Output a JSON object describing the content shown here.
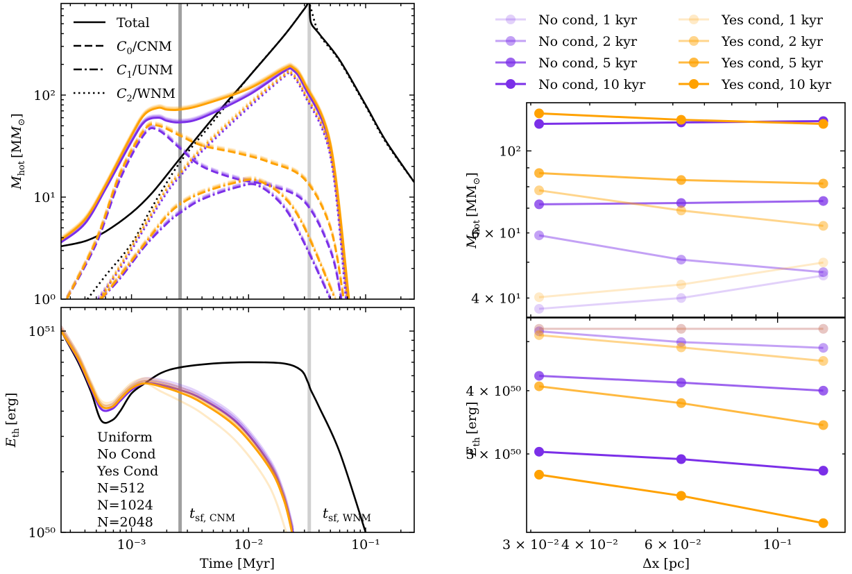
{
  "colors": {
    "no_cond": "#7b2fe8",
    "yes_cond": "#ffa100",
    "uniform": "#000000",
    "t_cnm_line": "#a0a0a0",
    "t_wnm_line": "#d0d0d0"
  },
  "chart_data": [
    {
      "id": "mhot-vs-time",
      "type": "line",
      "xscale": "log",
      "yscale": "log",
      "xlabel": "Time [Myr]",
      "ylabel": "M_hot [M_⊙]",
      "xlim": [
        0.00025,
        0.26
      ],
      "ylim": [
        1,
        790
      ],
      "xticks": [
        {
          "value": 0.001,
          "label": "10⁻³"
        },
        {
          "value": 0.01,
          "label": "10⁻²"
        },
        {
          "value": 0.1,
          "label": "10⁻¹"
        }
      ],
      "yticks": [
        {
          "value": 1,
          "label": "10⁰"
        },
        {
          "value": 10,
          "label": "10¹"
        },
        {
          "value": 100,
          "label": "10²"
        }
      ],
      "vlines": [
        {
          "name": "t_sf_CNM",
          "x": 0.0026
        },
        {
          "name": "t_sf_WNM",
          "x": 0.033
        }
      ],
      "legend": {
        "placement": "top-left",
        "entries": [
          {
            "label": "Total",
            "style": "solid"
          },
          {
            "label": "C₀/CNM",
            "style": "dashed"
          },
          {
            "label": "C₁/UNM",
            "style": "dashdot"
          },
          {
            "label": "C₂/WNM",
            "style": "dotted"
          }
        ]
      },
      "series": [
        {
          "name": "Uniform Total",
          "group": "uniform",
          "style": "solid",
          "x": [
            0.00025,
            0.0004,
            0.0006,
            0.001,
            0.0015,
            0.0026,
            0.005,
            0.01,
            0.02,
            0.03,
            0.033,
            0.034,
            0.04,
            0.06,
            0.1,
            0.15,
            0.26
          ],
          "y": [
            3.3,
            3.7,
            4.6,
            7,
            11,
            24,
            60,
            150,
            380,
            700,
            800,
            520,
            400,
            220,
            80,
            35,
            14
          ]
        },
        {
          "name": "Uniform C2/WNM",
          "group": "uniform",
          "style": "dotted",
          "x": [
            0.00042,
            0.0006,
            0.001,
            0.0015,
            0.0026,
            0.005,
            0.01,
            0.02,
            0.03,
            0.033,
            0.04,
            0.06,
            0.1,
            0.15,
            0.26
          ],
          "y": [
            1,
            1.7,
            3.5,
            8,
            22,
            55,
            150,
            380,
            700,
            780,
            400,
            215,
            78,
            34,
            14
          ]
        },
        {
          "name": "No Cond N=2048 Total",
          "group": "no_cond",
          "res": 2048,
          "style": "solid",
          "x": [
            0.00025,
            0.0004,
            0.0006,
            0.001,
            0.0013,
            0.0017,
            0.002,
            0.0026,
            0.004,
            0.01,
            0.02,
            0.024,
            0.03,
            0.05,
            0.07
          ],
          "y": [
            3.6,
            5.5,
            12,
            35,
            55,
            60,
            56,
            54,
            60,
            100,
            170,
            175,
            120,
            30,
            1
          ]
        },
        {
          "name": "Yes Cond N=2048 Total",
          "group": "yes_cond",
          "res": 2048,
          "style": "solid",
          "x": [
            0.00025,
            0.0004,
            0.0006,
            0.001,
            0.0013,
            0.0017,
            0.002,
            0.0026,
            0.004,
            0.01,
            0.02,
            0.024,
            0.03,
            0.05,
            0.072
          ],
          "y": [
            3.8,
            6,
            13,
            40,
            65,
            75,
            72,
            72,
            80,
            115,
            180,
            185,
            130,
            33,
            1
          ]
        },
        {
          "name": "No Cond N=2048 C0/CNM",
          "group": "no_cond",
          "res": 2048,
          "style": "dashed",
          "x": [
            0.00028,
            0.0005,
            0.0008,
            0.0013,
            0.0017,
            0.0026,
            0.004,
            0.008,
            0.015,
            0.03,
            0.05,
            0.062
          ],
          "y": [
            1,
            3.5,
            15,
            42,
            45,
            30,
            20,
            15,
            13,
            9,
            3,
            1
          ]
        },
        {
          "name": "Yes Cond N=2048 C0/CNM",
          "group": "yes_cond",
          "res": 2048,
          "style": "dashed",
          "x": [
            0.00028,
            0.0005,
            0.0008,
            0.0013,
            0.0017,
            0.0026,
            0.004,
            0.008,
            0.015,
            0.03,
            0.05,
            0.065
          ],
          "y": [
            1,
            3.8,
            17,
            46,
            50,
            40,
            32,
            27,
            22,
            15,
            5,
            1
          ]
        },
        {
          "name": "No Cond N=2048 C1/UNM",
          "group": "no_cond",
          "res": 2048,
          "style": "dashdot",
          "x": [
            0.00055,
            0.0008,
            0.0013,
            0.002,
            0.0026,
            0.004,
            0.008,
            0.012,
            0.02,
            0.03,
            0.05
          ],
          "y": [
            1,
            1.6,
            3.3,
            5.5,
            7,
            9.5,
            12.5,
            13,
            8,
            3.5,
            1
          ]
        },
        {
          "name": "Yes Cond N=2048 C1/UNM",
          "group": "yes_cond",
          "res": 2048,
          "style": "dashdot",
          "x": [
            0.00055,
            0.0008,
            0.0013,
            0.002,
            0.0026,
            0.004,
            0.008,
            0.012,
            0.02,
            0.03,
            0.055
          ],
          "y": [
            1,
            1.7,
            3.5,
            6.5,
            8.5,
            11,
            14,
            14.5,
            10,
            5,
            1
          ]
        },
        {
          "name": "No Cond N=2048 C2/WNM",
          "group": "no_cond",
          "res": 2048,
          "style": "dotted",
          "x": [
            0.00052,
            0.0008,
            0.0013,
            0.002,
            0.0026,
            0.004,
            0.01,
            0.02,
            0.023,
            0.03,
            0.05,
            0.068
          ],
          "y": [
            1,
            2,
            5,
            11,
            16,
            28,
            75,
            150,
            160,
            100,
            25,
            1
          ]
        },
        {
          "name": "Yes Cond N=2048 C2/WNM",
          "group": "yes_cond",
          "res": 2048,
          "style": "dotted",
          "x": [
            0.00054,
            0.0008,
            0.0013,
            0.002,
            0.0026,
            0.004,
            0.01,
            0.02,
            0.023,
            0.03,
            0.05,
            0.07
          ],
          "y": [
            1,
            2.1,
            5.3,
            12,
            17,
            30,
            80,
            155,
            165,
            105,
            27,
            1
          ]
        }
      ],
      "note": "Each group has lighter N=512 and N=1024 variants closely tracking the N=2048 curves."
    },
    {
      "id": "eth-vs-time",
      "type": "line",
      "xscale": "log",
      "yscale": "log",
      "xlabel": "Time [Myr]",
      "ylabel": "E_th [erg]",
      "xlim": [
        0.00025,
        0.26
      ],
      "ylim": [
        1e+50,
        1.31e+51
      ],
      "xticks": [
        {
          "value": 0.001,
          "label": "10⁻³"
        },
        {
          "value": 0.01,
          "label": "10⁻²"
        },
        {
          "value": 0.1,
          "label": "10⁻¹"
        }
      ],
      "yticks": [
        {
          "value": 1e+50,
          "label": "10⁵⁰"
        },
        {
          "value": 1e+51,
          "label": "10⁵¹"
        }
      ],
      "vlines": [
        {
          "name": "t_sf_CNM",
          "x": 0.0026,
          "label": "t_sf,CNM"
        },
        {
          "name": "t_sf_WNM",
          "x": 0.033,
          "label": "t_sf,WNM"
        }
      ],
      "text_legend": [
        {
          "label": "Uniform",
          "group": "uniform"
        },
        {
          "label": "No Cond",
          "group": "no_cond"
        },
        {
          "label": "Yes Cond",
          "group": "yes_cond"
        },
        {
          "label": "N=512",
          "group": "res512"
        },
        {
          "label": "N=1024",
          "group": "res1024"
        },
        {
          "label": "N=2048",
          "group": "res2048"
        }
      ],
      "series": [
        {
          "name": "Uniform",
          "group": "uniform",
          "x": [
            0.00025,
            0.00035,
            0.00045,
            0.00055,
            0.00068,
            0.0008,
            0.001,
            0.0013,
            0.0018,
            0.0026,
            0.005,
            0.01,
            0.02,
            0.028,
            0.032,
            0.034,
            0.04,
            0.06,
            0.1
          ],
          "y": [
            1e+51,
            7e+50,
            5e+50,
            3.6e+50,
            3.6e+50,
            4e+50,
            4.9e+50,
            5.5e+50,
            6.2e+50,
            6.6e+50,
            6.9e+50,
            7e+50,
            6.9e+50,
            6.4e+50,
            5.6e+50,
            5.1e+50,
            4.2e+50,
            2.5e+50,
            1e+50
          ]
        },
        {
          "name": "No Cond N=2048",
          "group": "no_cond",
          "res": 2048,
          "x": [
            0.00025,
            0.00035,
            0.00045,
            0.00055,
            0.00068,
            0.0008,
            0.001,
            0.0013,
            0.0018,
            0.0026,
            0.004,
            0.008,
            0.015,
            0.02,
            0.024
          ],
          "y": [
            1e+51,
            7.2e+50,
            5.2e+50,
            4.1e+50,
            4.1e+50,
            4.5e+50,
            5.1e+50,
            5.5e+50,
            5.4e+50,
            5.1e+50,
            4.6e+50,
            3.5e+50,
            2.2e+50,
            1.5e+50,
            1e+50
          ]
        },
        {
          "name": "Yes Cond N=2048",
          "group": "yes_cond",
          "res": 2048,
          "x": [
            0.00025,
            0.00035,
            0.00045,
            0.00055,
            0.00068,
            0.0008,
            0.001,
            0.0013,
            0.0018,
            0.0026,
            0.004,
            0.008,
            0.015,
            0.02,
            0.0235
          ],
          "y": [
            1e+51,
            7.3e+50,
            5.3e+50,
            4.25e+50,
            4.2e+50,
            4.6e+50,
            5.2e+50,
            5.5e+50,
            5.3e+50,
            4.95e+50,
            4.4e+50,
            3.3e+50,
            2.1e+50,
            1.45e+50,
            1e+50
          ]
        },
        {
          "name": "Yes Cond N=512",
          "group": "yes_cond",
          "res": 512,
          "x": [
            0.00025,
            0.00035,
            0.00045,
            0.00055,
            0.00068,
            0.0008,
            0.001,
            0.0013,
            0.0018,
            0.0026,
            0.004,
            0.008,
            0.015,
            0.021
          ],
          "y": [
            1e+51,
            7.3e+50,
            5.3e+50,
            4.25e+50,
            4.2e+50,
            4.6e+50,
            5.2e+50,
            5.5e+50,
            5e+50,
            4.5e+50,
            3.9e+50,
            2.8e+50,
            1.7e+50,
            1e+50
          ]
        }
      ]
    },
    {
      "id": "mhot-vs-dx",
      "type": "line",
      "xscale": "log",
      "yscale": "log",
      "xlabel": "",
      "ylabel": "M_hot [M_⊙]",
      "xlim": [
        0.0294,
        0.139
      ],
      "ylim": [
        35.5,
        135
      ],
      "yticks": [
        {
          "value": 40,
          "label": "4 × 10¹"
        },
        {
          "value": 60,
          "label": "6 × 10¹"
        },
        {
          "value": 100,
          "label": "10²"
        }
      ],
      "legend": {
        "placement": "above",
        "entries": [
          {
            "label": "No cond, 1 kyr",
            "group": "no_cond",
            "age": 1
          },
          {
            "label": "No cond, 2 kyr",
            "group": "no_cond",
            "age": 2
          },
          {
            "label": "No cond, 5 kyr",
            "group": "no_cond",
            "age": 5
          },
          {
            "label": "No cond, 10 kyr",
            "group": "no_cond",
            "age": 10
          },
          {
            "label": "Yes cond, 1 kyr",
            "group": "yes_cond",
            "age": 1
          },
          {
            "label": "Yes cond, 2 kyr",
            "group": "yes_cond",
            "age": 2
          },
          {
            "label": "Yes cond, 5 kyr",
            "group": "yes_cond",
            "age": 5
          },
          {
            "label": "Yes cond, 10 kyr",
            "group": "yes_cond",
            "age": 10
          }
        ]
      },
      "x": [
        0.03125,
        0.0625,
        0.125
      ],
      "series": [
        {
          "name": "No cond, 1 kyr",
          "group": "no_cond",
          "age": 1,
          "values": [
            37.4,
            40.0,
            46.0
          ]
        },
        {
          "name": "No cond, 2 kyr",
          "group": "no_cond",
          "age": 2,
          "values": [
            59.1,
            50.8,
            47.0
          ]
        },
        {
          "name": "No cond, 5 kyr",
          "group": "no_cond",
          "age": 5,
          "values": [
            71.7,
            72.3,
            73.2
          ]
        },
        {
          "name": "No cond, 10 kyr",
          "group": "no_cond",
          "age": 10,
          "values": [
            118.3,
            119.4,
            120.4
          ]
        },
        {
          "name": "Yes cond, 1 kyr",
          "group": "yes_cond",
          "age": 1,
          "values": [
            40.2,
            43.5,
            49.9
          ]
        },
        {
          "name": "Yes cond, 2 kyr",
          "group": "yes_cond",
          "age": 2,
          "values": [
            78.2,
            69.0,
            62.7
          ]
        },
        {
          "name": "Yes cond, 5 kyr",
          "group": "yes_cond",
          "age": 5,
          "values": [
            87.1,
            83.4,
            81.6
          ]
        },
        {
          "name": "Yes cond, 10 kyr",
          "group": "yes_cond",
          "age": 10,
          "values": [
            126.3,
            121.4,
            118.3
          ]
        }
      ]
    },
    {
      "id": "eth-vs-dx",
      "type": "line",
      "xscale": "log",
      "yscale": "log",
      "xlabel": "Δx [pc]",
      "ylabel": "E_th [erg]",
      "xlim": [
        0.0294,
        0.139
      ],
      "ylim": [
        2.1e+50,
        5.57e+50
      ],
      "xticks": [
        {
          "value": 0.03,
          "label": "3 × 10⁻²"
        },
        {
          "value": 0.04,
          "label": "4 × 10⁻²"
        },
        {
          "value": 0.06,
          "label": "6 × 10⁻²"
        },
        {
          "value": 0.1,
          "label": "10⁻¹"
        }
      ],
      "yticks": [
        {
          "value": 3e+50,
          "label": "3 × 10⁵⁰"
        },
        {
          "value": 4e+50,
          "label": "4 × 10⁵⁰"
        }
      ],
      "x": [
        0.03125,
        0.0625,
        0.125
      ],
      "series": [
        {
          "name": "No cond, 1 kyr",
          "group": "no_cond",
          "age": 1,
          "values": [
            5.3e+50,
            5.3e+50,
            5.3e+50
          ]
        },
        {
          "name": "No cond, 2 kyr",
          "group": "no_cond",
          "age": 2,
          "values": [
            5.24e+50,
            4.99e+50,
            4.86e+50
          ]
        },
        {
          "name": "No cond, 5 kyr",
          "group": "no_cond",
          "age": 5,
          "values": [
            4.28e+50,
            4.15e+50,
            4e+50
          ]
        },
        {
          "name": "No cond, 10 kyr",
          "group": "no_cond",
          "age": 10,
          "values": [
            3.03e+50,
            2.93e+50,
            2.78e+50
          ]
        },
        {
          "name": "Yes cond, 1 kyr",
          "group": "yes_cond",
          "age": 1,
          "values": [
            5.3e+50,
            5.3e+50,
            5.3e+50
          ]
        },
        {
          "name": "Yes cond, 2 kyr",
          "group": "yes_cond",
          "age": 2,
          "values": [
            5.15e+50,
            4.87e+50,
            4.58e+50
          ]
        },
        {
          "name": "Yes cond, 5 kyr",
          "group": "yes_cond",
          "age": 5,
          "values": [
            4.08e+50,
            3.78e+50,
            3.42e+50
          ]
        },
        {
          "name": "Yes cond, 10 kyr",
          "group": "yes_cond",
          "age": 10,
          "values": [
            2.73e+50,
            2.48e+50,
            2.19e+50
          ]
        }
      ]
    }
  ],
  "labels": {
    "left_top_ylabel_main": "M",
    "left_top_ylabel_sub": "hot",
    "left_top_ylabel_unit": "[M",
    "left_bottom_ylabel_main": "E",
    "left_bottom_ylabel_sub": "th",
    "left_bottom_ylabel_unit": "[erg]",
    "time_xlabel": "Time [Myr]",
    "dx_xlabel": "Δx [pc]",
    "t_cnm_main": "t",
    "t_cnm_sub": "sf, CNM",
    "t_wnm_main": "t",
    "t_wnm_sub": "sf, WNM",
    "right_top_ylabel_main": "M",
    "right_top_ylabel_sub": "hot",
    "right_top_ylabel_unit": "[M",
    "right_bottom_ylabel_main": "E",
    "right_bottom_ylabel_sub": "th",
    "right_bottom_ylabel_unit": "[erg]"
  }
}
